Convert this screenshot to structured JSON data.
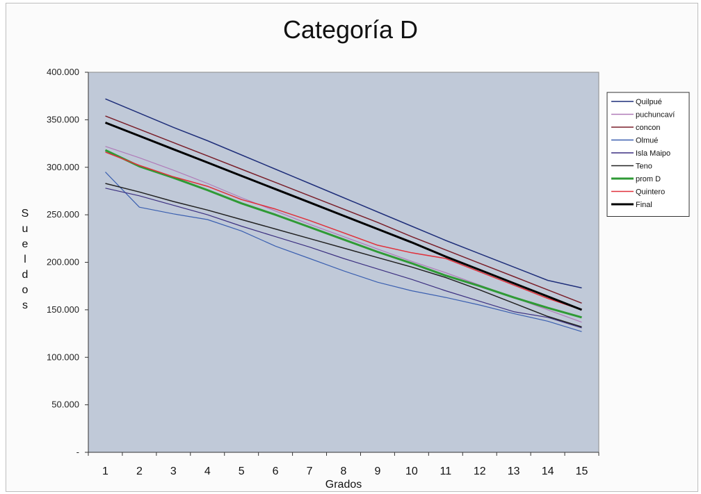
{
  "chart_data": {
    "type": "line",
    "title": "Categoría D",
    "xlabel": "Grados",
    "ylabel": "Sueldos",
    "x": [
      1,
      2,
      3,
      4,
      5,
      6,
      7,
      8,
      9,
      10,
      11,
      12,
      13,
      14,
      15
    ],
    "y_ticks": [
      "-",
      "50.000",
      "100.000",
      "150.000",
      "200.000",
      "250.000",
      "300.000",
      "350.000",
      "400.000"
    ],
    "x_ticks": [
      "1",
      "2",
      "3",
      "4",
      "5",
      "6",
      "7",
      "8",
      "9",
      "10",
      "11",
      "12",
      "13",
      "14",
      "15"
    ],
    "ylim": [
      0,
      400000
    ],
    "xlim": [
      0.5,
      15.5
    ],
    "grid": false,
    "legend_position": "right",
    "plot_background": "#c0c9d8",
    "series": [
      {
        "name": "Quilpué",
        "color": "#1f2f7a",
        "width": 1.5,
        "values": [
          372000,
          357000,
          342000,
          328000,
          313000,
          298000,
          283000,
          268000,
          253000,
          238000,
          223000,
          209000,
          195000,
          181000,
          173000
        ]
      },
      {
        "name": "puchuncaví",
        "color": "#b07ab8",
        "width": 1.2,
        "values": [
          322000,
          310000,
          297000,
          283000,
          268000,
          254000,
          240000,
          227000,
          214000,
          201000,
          189000,
          176000,
          163000,
          150000,
          137000
        ]
      },
      {
        "name": "concon",
        "color": "#7a1f2a",
        "width": 1.5,
        "values": [
          354000,
          340000,
          326000,
          312000,
          298000,
          284000,
          270000,
          256000,
          242000,
          227000,
          213000,
          199000,
          185000,
          171000,
          157000
        ]
      },
      {
        "name": "Olmué",
        "color": "#3a5fb0",
        "width": 1.2,
        "values": [
          295000,
          258000,
          251000,
          245000,
          233000,
          217000,
          204000,
          191000,
          179000,
          170000,
          163000,
          155000,
          146000,
          138000,
          127000
        ]
      },
      {
        "name": "Isla Maipo",
        "color": "#3b2f80",
        "width": 1.2,
        "values": [
          278000,
          270000,
          260000,
          250000,
          238000,
          227000,
          216000,
          204000,
          193000,
          182000,
          170000,
          159000,
          148000,
          142000,
          131000
        ]
      },
      {
        "name": "Teno",
        "color": "#222222",
        "width": 1.5,
        "values": [
          283000,
          274000,
          264000,
          255000,
          245000,
          235000,
          225000,
          215000,
          205000,
          195000,
          184000,
          171000,
          157000,
          143000,
          132000
        ]
      },
      {
        "name": "prom D",
        "color": "#2f9a35",
        "width": 3,
        "values": [
          318000,
          301000,
          289000,
          276000,
          262000,
          250000,
          237000,
          224000,
          211000,
          199000,
          186000,
          175000,
          163000,
          152000,
          142000
        ]
      },
      {
        "name": "Quintero",
        "color": "#e0303a",
        "width": 1.5,
        "values": [
          316000,
          302000,
          290000,
          280000,
          266000,
          256000,
          244000,
          231000,
          218000,
          210000,
          204000,
          190000,
          176000,
          162000,
          150000
        ]
      },
      {
        "name": "Final",
        "color": "#000000",
        "width": 3,
        "values": [
          347000,
          333000,
          319000,
          305000,
          291000,
          277000,
          263000,
          249000,
          235000,
          221000,
          206000,
          192000,
          178000,
          164000,
          150000
        ]
      }
    ]
  }
}
